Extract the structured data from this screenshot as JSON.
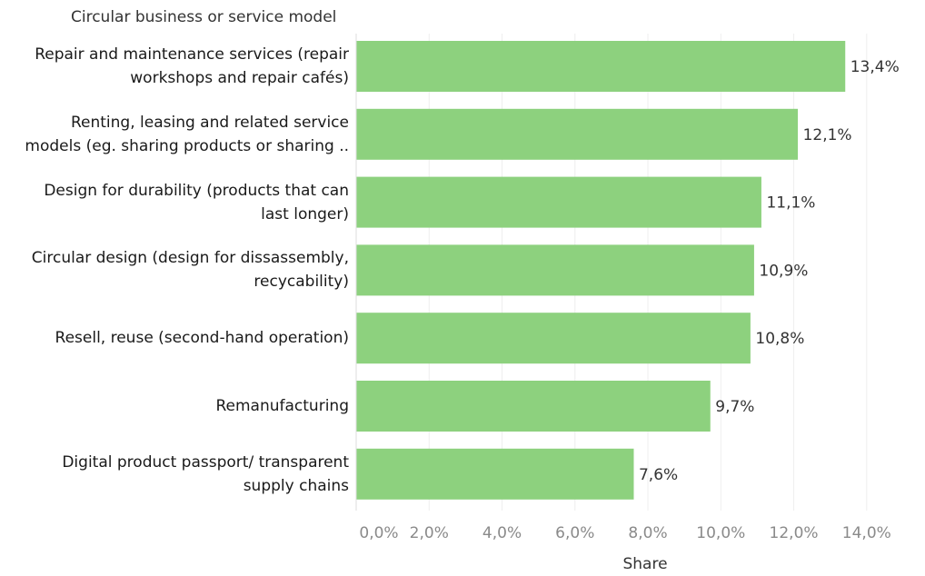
{
  "chart_data": {
    "type": "bar",
    "orientation": "horizontal",
    "row_header": "Circular business or service model",
    "categories": [
      [
        "Repair and maintenance services (repair",
        "workshops and repair cafés)"
      ],
      [
        "Renting, leasing and related service",
        "models (eg. sharing products or sharing .."
      ],
      [
        "Design for durability (products that can",
        "last longer)"
      ],
      [
        "Circular design (design for dissassembly,",
        "recyability)"
      ],
      [
        "Resell, reuse (second-hand operation)"
      ],
      [
        "Remanufacturing"
      ],
      [
        "Digital product passport/ transparent",
        "supply chains"
      ]
    ],
    "values": [
      13.4,
      12.1,
      11.1,
      10.9,
      10.8,
      9.7,
      7.6
    ],
    "value_labels": [
      "13,4%",
      "12,1%",
      "11,1%",
      "10,9%",
      "10,8%",
      "9,7%",
      "7,6%"
    ],
    "xlabel": "Share",
    "xlim": [
      0,
      15.4
    ],
    "xticks": [
      0,
      2,
      4,
      6,
      8,
      10,
      12,
      14
    ],
    "xtick_labels": [
      "0,0%",
      "2,0%",
      "4,0%",
      "6,0%",
      "8,0%",
      "10,0%",
      "12,0%",
      "14,0%"
    ],
    "bar_color": "#8dd17e",
    "grid": true
  }
}
